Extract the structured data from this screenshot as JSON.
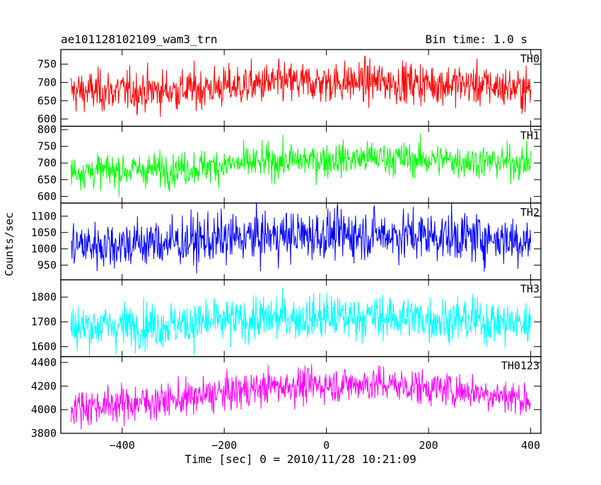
{
  "header": {
    "title": "ae101128102109_wam3_trn",
    "bin_time": "Bin time: 1.0 s"
  },
  "axes": {
    "ylabel": "Counts/sec",
    "xlabel": "Time [sec] 0 = 2010/11/28 10:21:09",
    "x_ticks": [
      "−400",
      "−200",
      "0",
      "200",
      "400"
    ]
  },
  "chart_data": {
    "type": "line",
    "title": "ae101128102109_wam3_trn",
    "xlabel": "Time [sec] 0 = 2010/11/28 10:21:09",
    "ylabel": "Counts/sec",
    "xlim": [
      -520,
      420
    ],
    "x_range": [
      -500,
      400
    ],
    "bin_time_s": 1.0,
    "x_ticks": [
      -400,
      -200,
      0,
      200,
      400
    ],
    "grid": false,
    "panels": [
      {
        "name": "TH0",
        "color": "#ff0000",
        "ylim": [
          580,
          790
        ],
        "y_ticks": [
          600,
          650,
          700,
          750
        ],
        "trend": [
          [
            -500,
            675
          ],
          [
            -300,
            678
          ],
          [
            -100,
            698
          ],
          [
            100,
            702
          ],
          [
            300,
            693
          ],
          [
            400,
            680
          ]
        ],
        "noise_sd": 28
      },
      {
        "name": "TH1",
        "color": "#00ff00",
        "ylim": [
          580,
          810
        ],
        "y_ticks": [
          600,
          650,
          700,
          750,
          800
        ],
        "trend": [
          [
            -500,
            675
          ],
          [
            -300,
            682
          ],
          [
            -100,
            705
          ],
          [
            100,
            715
          ],
          [
            300,
            705
          ],
          [
            400,
            700
          ]
        ],
        "noise_sd": 25
      },
      {
        "name": "TH2",
        "color": "#0000ff",
        "ylim": [
          905,
          1140
        ],
        "y_ticks": [
          950,
          1000,
          1050,
          1100
        ],
        "trend": [
          [
            -500,
            1010
          ],
          [
            -300,
            1020
          ],
          [
            -100,
            1040
          ],
          [
            100,
            1045
          ],
          [
            300,
            1035
          ],
          [
            400,
            1025
          ]
        ],
        "noise_sd": 38
      },
      {
        "name": "TH3",
        "color": "#00ffff",
        "ylim": [
          1560,
          1870
        ],
        "y_ticks": [
          1600,
          1700,
          1800
        ],
        "trend": [
          [
            -500,
            1680
          ],
          [
            -300,
            1690
          ],
          [
            -100,
            1715
          ],
          [
            100,
            1720
          ],
          [
            300,
            1705
          ],
          [
            400,
            1690
          ]
        ],
        "noise_sd": 45
      },
      {
        "name": "TH0123",
        "color": "#ff00ff",
        "ylim": [
          3800,
          4450
        ],
        "y_ticks": [
          3800,
          4000,
          4200,
          4400
        ],
        "trend": [
          [
            -500,
            4020
          ],
          [
            -300,
            4080
          ],
          [
            -100,
            4200
          ],
          [
            100,
            4220
          ],
          [
            300,
            4150
          ],
          [
            400,
            4080
          ]
        ],
        "noise_sd": 75
      }
    ]
  }
}
